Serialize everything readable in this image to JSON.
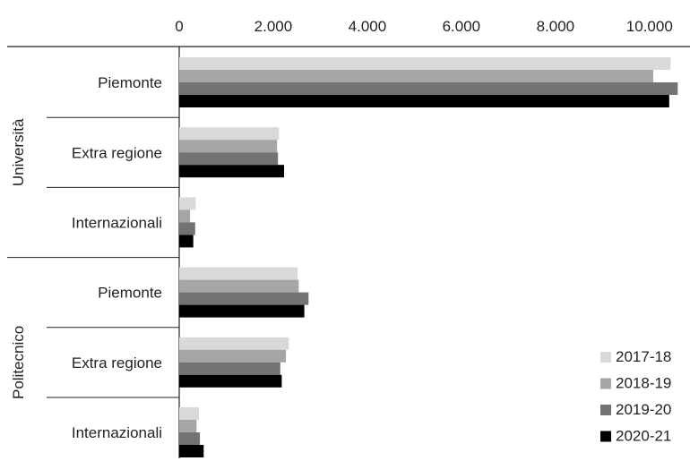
{
  "chart_data": {
    "type": "bar",
    "orientation": "horizontal",
    "xlim": [
      0,
      10500
    ],
    "x_ticks": [
      "0",
      "2.000",
      "4.000",
      "6.000",
      "8.000",
      "10.000"
    ],
    "x_tick_values": [
      0,
      2000,
      4000,
      6000,
      8000,
      10000
    ],
    "axis_position": "top",
    "grid": false,
    "legend_position": "bottom-right",
    "groups": [
      {
        "label": "Università",
        "categories": [
          "Piemonte",
          "Extra regione",
          "Internazionali"
        ]
      },
      {
        "label": "Politecnico",
        "categories": [
          "Piemonte",
          "Extra regione",
          "Internazionali"
        ]
      }
    ],
    "series": [
      {
        "name": "2017-18",
        "color": "#d9d9d9",
        "values": [
          10450,
          2120,
          350,
          2520,
          2330,
          420
        ]
      },
      {
        "name": "2018-19",
        "color": "#a6a6a6",
        "values": [
          10080,
          2080,
          230,
          2540,
          2270,
          370
        ]
      },
      {
        "name": "2019-20",
        "color": "#737373",
        "values": [
          10600,
          2100,
          340,
          2750,
          2150,
          440
        ]
      },
      {
        "name": "2020-21",
        "color": "#000000",
        "values": [
          10420,
          2230,
          300,
          2660,
          2180,
          520
        ]
      }
    ]
  }
}
